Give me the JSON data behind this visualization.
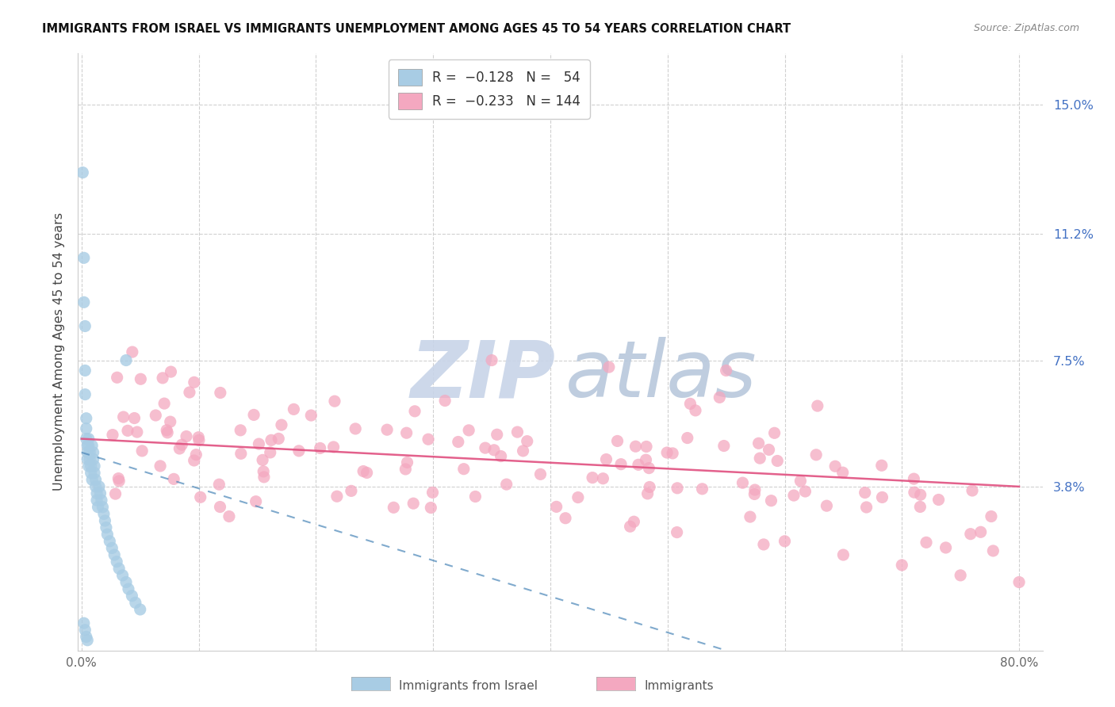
{
  "title": "IMMIGRANTS FROM ISRAEL VS IMMIGRANTS UNEMPLOYMENT AMONG AGES 45 TO 54 YEARS CORRELATION CHART",
  "source": "Source: ZipAtlas.com",
  "ylabel": "Unemployment Among Ages 45 to 54 years",
  "xlim": [
    -0.003,
    0.82
  ],
  "ylim": [
    -0.01,
    0.165
  ],
  "right_yticks": [
    0.038,
    0.075,
    0.112,
    0.15
  ],
  "right_yticklabels": [
    "3.8%",
    "7.5%",
    "11.2%",
    "15.0%"
  ],
  "blue_scatter_color": "#a8cce4",
  "pink_scatter_color": "#f4a8c0",
  "blue_line_color": "#4a86b8",
  "pink_line_color": "#e05080",
  "grid_color": "#d0d0d0",
  "background_color": "#ffffff",
  "watermark_zip_color": "#c8d4e4",
  "watermark_atlas_color": "#b8c8dc"
}
